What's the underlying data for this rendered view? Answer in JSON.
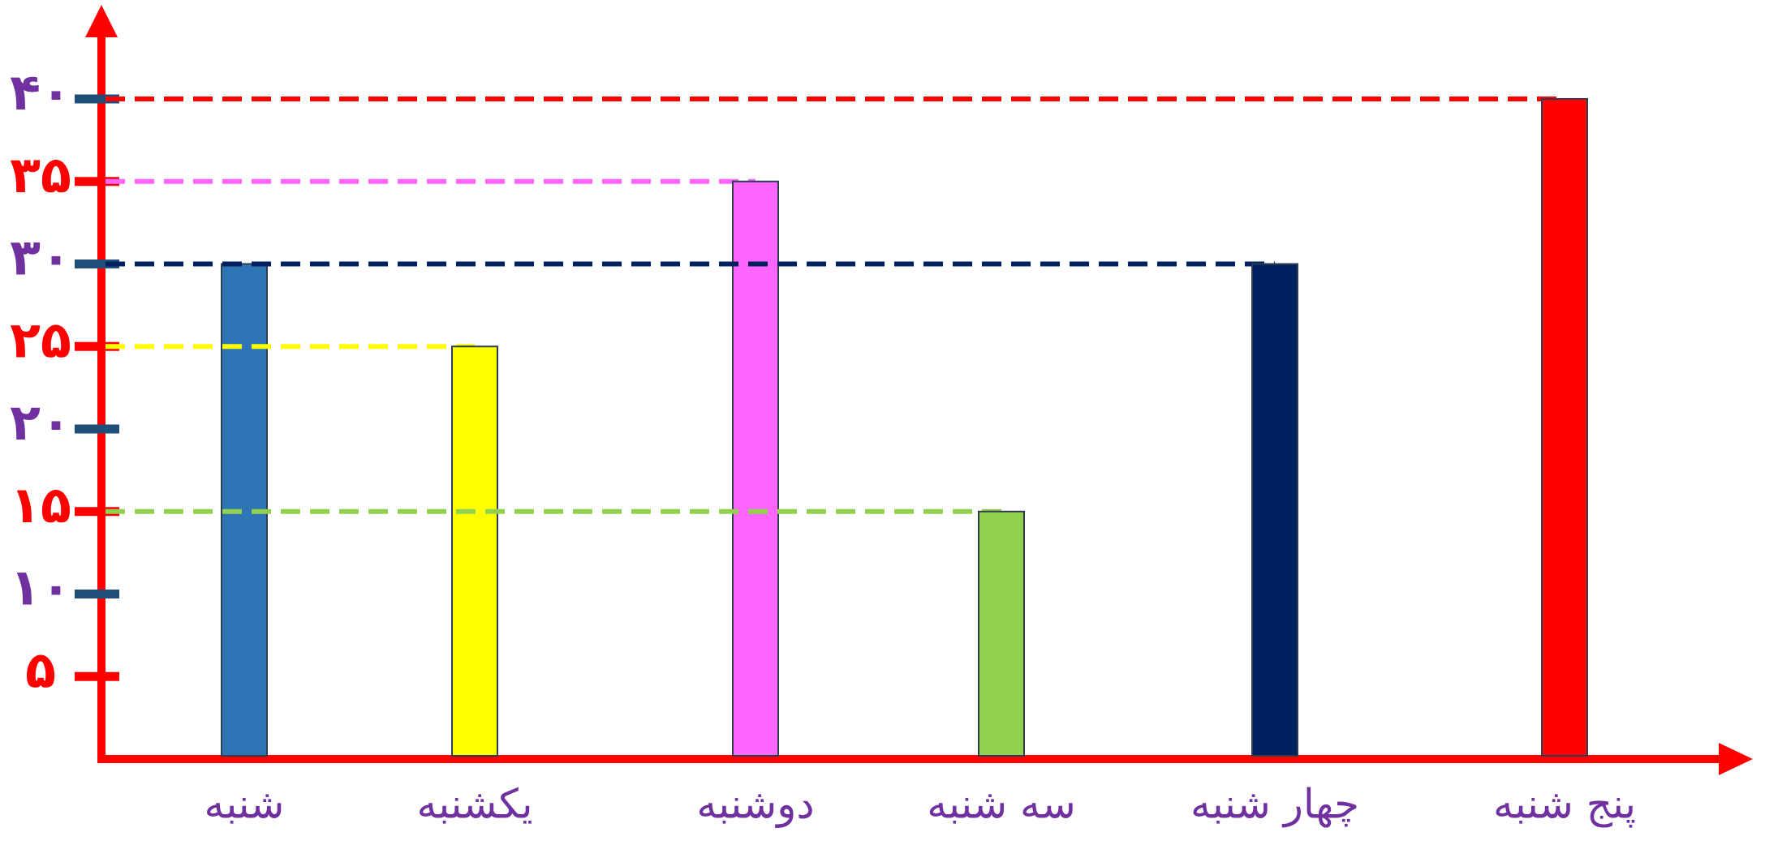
{
  "chart_data": {
    "type": "bar",
    "categories": [
      "شنبه",
      "یکشنبه",
      "دوشنبه",
      "سه شنبه",
      "چهار شنبه",
      "پنج شنبه"
    ],
    "values": [
      30,
      25,
      35,
      15,
      30,
      40
    ],
    "colors": [
      "#2e75b6",
      "#ffff00",
      "#ff66ff",
      "#92d050",
      "#002060",
      "#ff0000"
    ],
    "ylim": [
      0,
      40
    ],
    "yticks": [
      {
        "value": 5,
        "label": "۵"
      },
      {
        "value": 10,
        "label": "۱۰"
      },
      {
        "value": 15,
        "label": "۱۵"
      },
      {
        "value": 20,
        "label": "۲۰"
      },
      {
        "value": 25,
        "label": "۲۵"
      },
      {
        "value": 30,
        "label": "۳۰"
      },
      {
        "value": 35,
        "label": "۳۵"
      },
      {
        "value": 40,
        "label": "۴۰"
      }
    ],
    "reference_lines": true
  }
}
